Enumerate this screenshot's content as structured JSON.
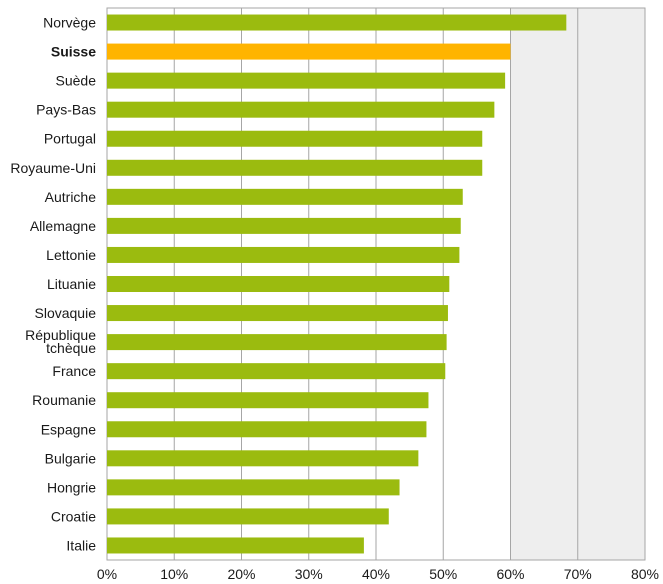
{
  "chart_data": {
    "type": "bar",
    "orientation": "horizontal",
    "categories": [
      "Norvège",
      "Suisse",
      "Suède",
      "Pays-Bas",
      "Portugal",
      "Royaume-Uni",
      "Autriche",
      "Allemagne",
      "Lettonie",
      "Lituanie",
      "Slovaquie",
      "République tchèque",
      "France",
      "Roumanie",
      "Espagne",
      "Bulgarie",
      "Hongrie",
      "Croatie",
      "Italie"
    ],
    "values": [
      68.3,
      60.0,
      59.2,
      57.6,
      55.8,
      55.8,
      52.9,
      52.6,
      52.4,
      50.9,
      50.7,
      50.5,
      50.3,
      47.8,
      47.5,
      46.3,
      43.5,
      41.9,
      38.2
    ],
    "highlight_category": "Suisse",
    "xlim": [
      0,
      80
    ],
    "xticks": [
      "0%",
      "10%",
      "20%",
      "30%",
      "40%",
      "50%",
      "60%",
      "70%",
      "80%"
    ],
    "grid": "vertical",
    "shaded_region_start": 60,
    "colors": {
      "bar": "#9bbb0f",
      "highlight": "#ffb400",
      "shaded": "#eeeeee",
      "grid": "#a6a6a6"
    },
    "title": "",
    "xlabel": "",
    "ylabel": ""
  }
}
